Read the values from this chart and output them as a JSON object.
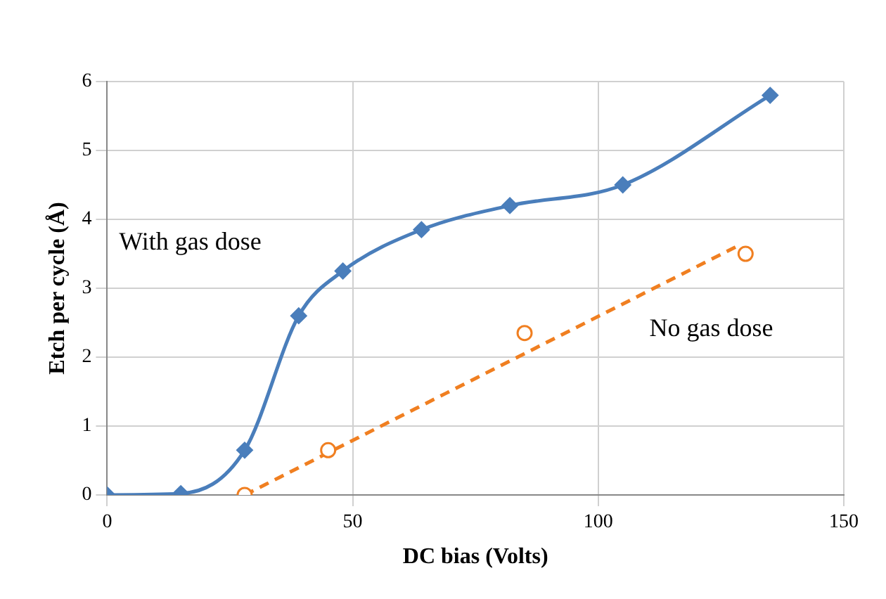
{
  "chart_data": {
    "type": "line",
    "xlabel": "DC bias (Volts)",
    "ylabel": "Etch per cycle (Å)",
    "xlim": [
      0,
      150
    ],
    "xticks": [
      0,
      50,
      100,
      150
    ],
    "ylim": [
      0,
      6
    ],
    "yticks": [
      0,
      1,
      2,
      3,
      4,
      5,
      6
    ],
    "grid": true,
    "legend": false,
    "series": [
      {
        "name": "With gas dose",
        "type": "line",
        "color": "#4a7ebb",
        "marker": "diamond",
        "line_style": "solid",
        "x": [
          0,
          15,
          28,
          39,
          48,
          64,
          82,
          105,
          135
        ],
        "values": [
          0,
          0.02,
          0.65,
          2.6,
          3.25,
          3.85,
          4.2,
          4.5,
          5.8
        ]
      },
      {
        "name": "No gas dose",
        "type": "scatter",
        "color": "#f07f21",
        "marker": "circle",
        "x": [
          28,
          45,
          85,
          130
        ],
        "values": [
          0,
          0.65,
          2.35,
          3.5
        ]
      },
      {
        "type": "line",
        "color": "#f07f21",
        "marker": "none",
        "line_style": "dashed",
        "x": [
          28,
          128
        ],
        "values": [
          0,
          3.6
        ]
      }
    ]
  }
}
